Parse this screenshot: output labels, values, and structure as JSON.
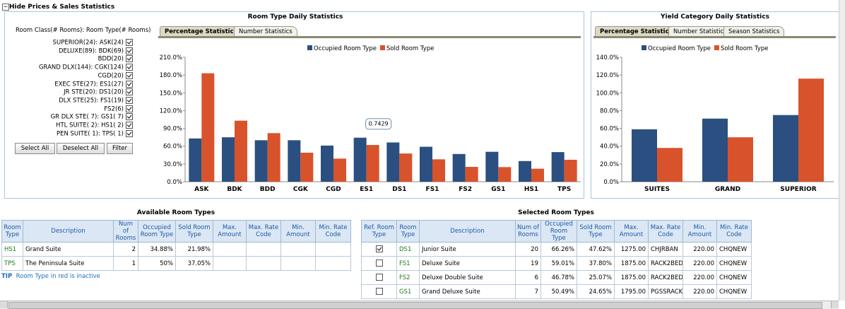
{
  "header": {
    "title": "Hide Prices & Sales Statistics"
  },
  "room_filter": {
    "heading": "Room Class(# Rooms): Room Type(# Rooms)",
    "items": [
      "SUPERIOR(24): ASK(24)",
      "DELUXE(89): BDK(69)",
      "BDD(20)",
      "GRAND DLX(144): CGK(124)",
      "CGD(20)",
      "EXEC STE(27): ES1(27)",
      "JR STE(20): DS1(20)",
      "DLX STE(25): FS1(19)",
      "FS2(6)",
      "GR DLX STE( 7): GS1( 7)",
      "HTL SUITE( 2): HS1( 2)",
      "PEN SUITE( 1): TPS( 1)"
    ],
    "buttons": [
      "Select All",
      "Deselect All",
      "Filter"
    ]
  },
  "tabs": {
    "room": [
      "Percentage Statistics",
      "Number Statistics"
    ],
    "yield": [
      "Percentage Statistics",
      "Number Statistics",
      "Season Statistics"
    ]
  },
  "chart_data": [
    {
      "type": "bar",
      "title": "Room Type Daily Statistics",
      "categories": [
        "ASK",
        "BDK",
        "BDD",
        "CGK",
        "CGD",
        "ES1",
        "DS1",
        "FS1",
        "FS2",
        "GS1",
        "HS1",
        "TPS"
      ],
      "series": [
        {
          "name": "Occupied Room Type",
          "color": "#2b4f80",
          "values": [
            73,
            75,
            70,
            70,
            61,
            74.29,
            66.26,
            59.01,
            46.78,
            50.49,
            34.88,
            50
          ]
        },
        {
          "name": "Sold Room Type",
          "color": "#d8532b",
          "values": [
            183,
            103,
            82,
            49,
            39,
            62,
            47.62,
            37.8,
            25.07,
            24.65,
            21.98,
            37.05
          ]
        }
      ],
      "ylim": [
        0,
        210
      ],
      "yticks": [
        {
          "value": 0,
          "label": "0.0%"
        },
        {
          "value": 30,
          "label": "30.0%"
        },
        {
          "value": 60,
          "label": "60.0%"
        },
        {
          "value": 90,
          "label": "90.0%"
        },
        {
          "value": 120,
          "label": "120.0%"
        },
        {
          "value": 150,
          "label": "150.0%"
        },
        {
          "value": 180,
          "label": "180.0%"
        },
        {
          "value": 210,
          "label": "210.0%"
        }
      ],
      "legend": "top",
      "annotation": "0.7429"
    },
    {
      "type": "bar",
      "title": "Yield Category Daily Statistics",
      "categories": [
        "SUITES",
        "GRAND",
        "SUPERIOR"
      ],
      "series": [
        {
          "name": "Occupied Room Type",
          "color": "#2b4f80",
          "values": [
            59,
            71,
            75
          ]
        },
        {
          "name": "Sold Room Type",
          "color": "#d8532b",
          "values": [
            38,
            50,
            116
          ]
        }
      ],
      "ylim": [
        0,
        140
      ],
      "yticks": [
        {
          "value": 0,
          "label": "0.0%"
        },
        {
          "value": 20,
          "label": "20.0%"
        },
        {
          "value": 40,
          "label": "40.0%"
        },
        {
          "value": 60,
          "label": "60.0%"
        },
        {
          "value": 80,
          "label": "80.0%"
        },
        {
          "value": 100,
          "label": "100.0%"
        },
        {
          "value": 120,
          "label": "120.0%"
        },
        {
          "value": 140,
          "label": "140.0%"
        }
      ],
      "legend": "top"
    }
  ],
  "available_table": {
    "title": "Available Room Types",
    "columns": [
      "Room Type",
      "Description",
      "Num of Rooms",
      "Occupied Room Type",
      "Sold Room Type",
      "Max. Amount",
      "Max. Rate Code",
      "Min. Amount",
      "Min. Rate Code"
    ],
    "rows": [
      [
        "HS1",
        "Grand Suite",
        "2",
        "34.88%",
        "21.98%"
      ],
      [
        "TPS",
        "The Peninsula Suite",
        "1",
        "50%",
        "37.05%"
      ]
    ]
  },
  "selected_table": {
    "title": "Selected Room Types",
    "columns": [
      "Ref. Room Type",
      "Room Type",
      "Description",
      "Num of Rooms",
      "Occupied Room Type",
      "Sold Room Type",
      "Max. Amount",
      "Max. Rate Code",
      "Min. Amount",
      "Min. Rate Code"
    ],
    "ref_checked": [
      true,
      false,
      false,
      false
    ],
    "rows": [
      [
        "DS1",
        "Junior Suite",
        "20",
        "66.26%",
        "47.62%",
        "1275.00",
        "CHJRBAN",
        "220.00",
        "CHQNEW"
      ],
      [
        "FS1",
        "Deluxe Suite",
        "19",
        "59.01%",
        "37.80%",
        "1875.00",
        "RACK2BED",
        "220.00",
        "CHQNEW"
      ],
      [
        "FS2",
        "Deluxe Double Suite",
        "6",
        "46.78%",
        "25.07%",
        "1875.00",
        "RACK2BED",
        "220.00",
        "CHQNEW"
      ],
      [
        "GS1",
        "Grand Deluxe Suite",
        "7",
        "50.49%",
        "24.65%",
        "1795.00",
        "PGSSRACK",
        "220.00",
        "CHQNEW"
      ]
    ]
  },
  "tip": {
    "label": "TIP",
    "text": "Room Type in red is inactive"
  }
}
